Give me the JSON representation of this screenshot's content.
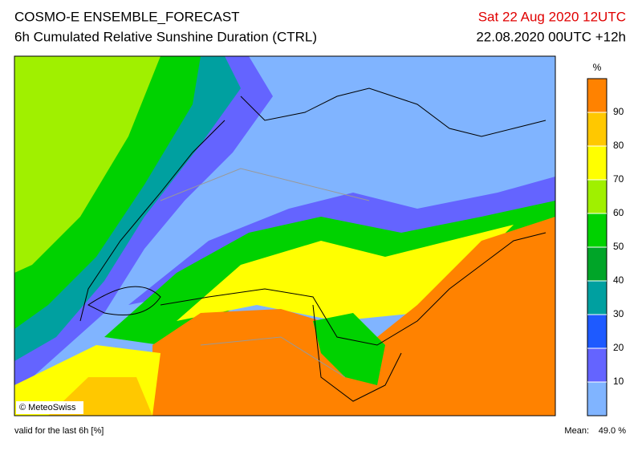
{
  "header": {
    "title": "COSMO-E ENSEMBLE_FORECAST",
    "subtitle": "6h Cumulated Relative Sunshine Duration (CTRL)",
    "date": "Sat 22 Aug 2020 12UTC",
    "run": "22.08.2020 00UTC +12h"
  },
  "map": {
    "copyright": "© MeteoSwiss"
  },
  "colorbar": {
    "unit": "%",
    "lim": [
      0,
      100
    ],
    "ticks": [
      10,
      20,
      30,
      40,
      50,
      60,
      70,
      80,
      90
    ],
    "colors": [
      "#80b4ff",
      "#6464ff",
      "#1e5aff",
      "#00a0a0",
      "#00a528",
      "#00d200",
      "#a0f000",
      "#ffff00",
      "#ffc800",
      "#ff8200"
    ]
  },
  "footer": {
    "validity": "valid for the last 6h [%]",
    "mean_label": "Mean:",
    "mean_value": "49.0 %"
  }
}
